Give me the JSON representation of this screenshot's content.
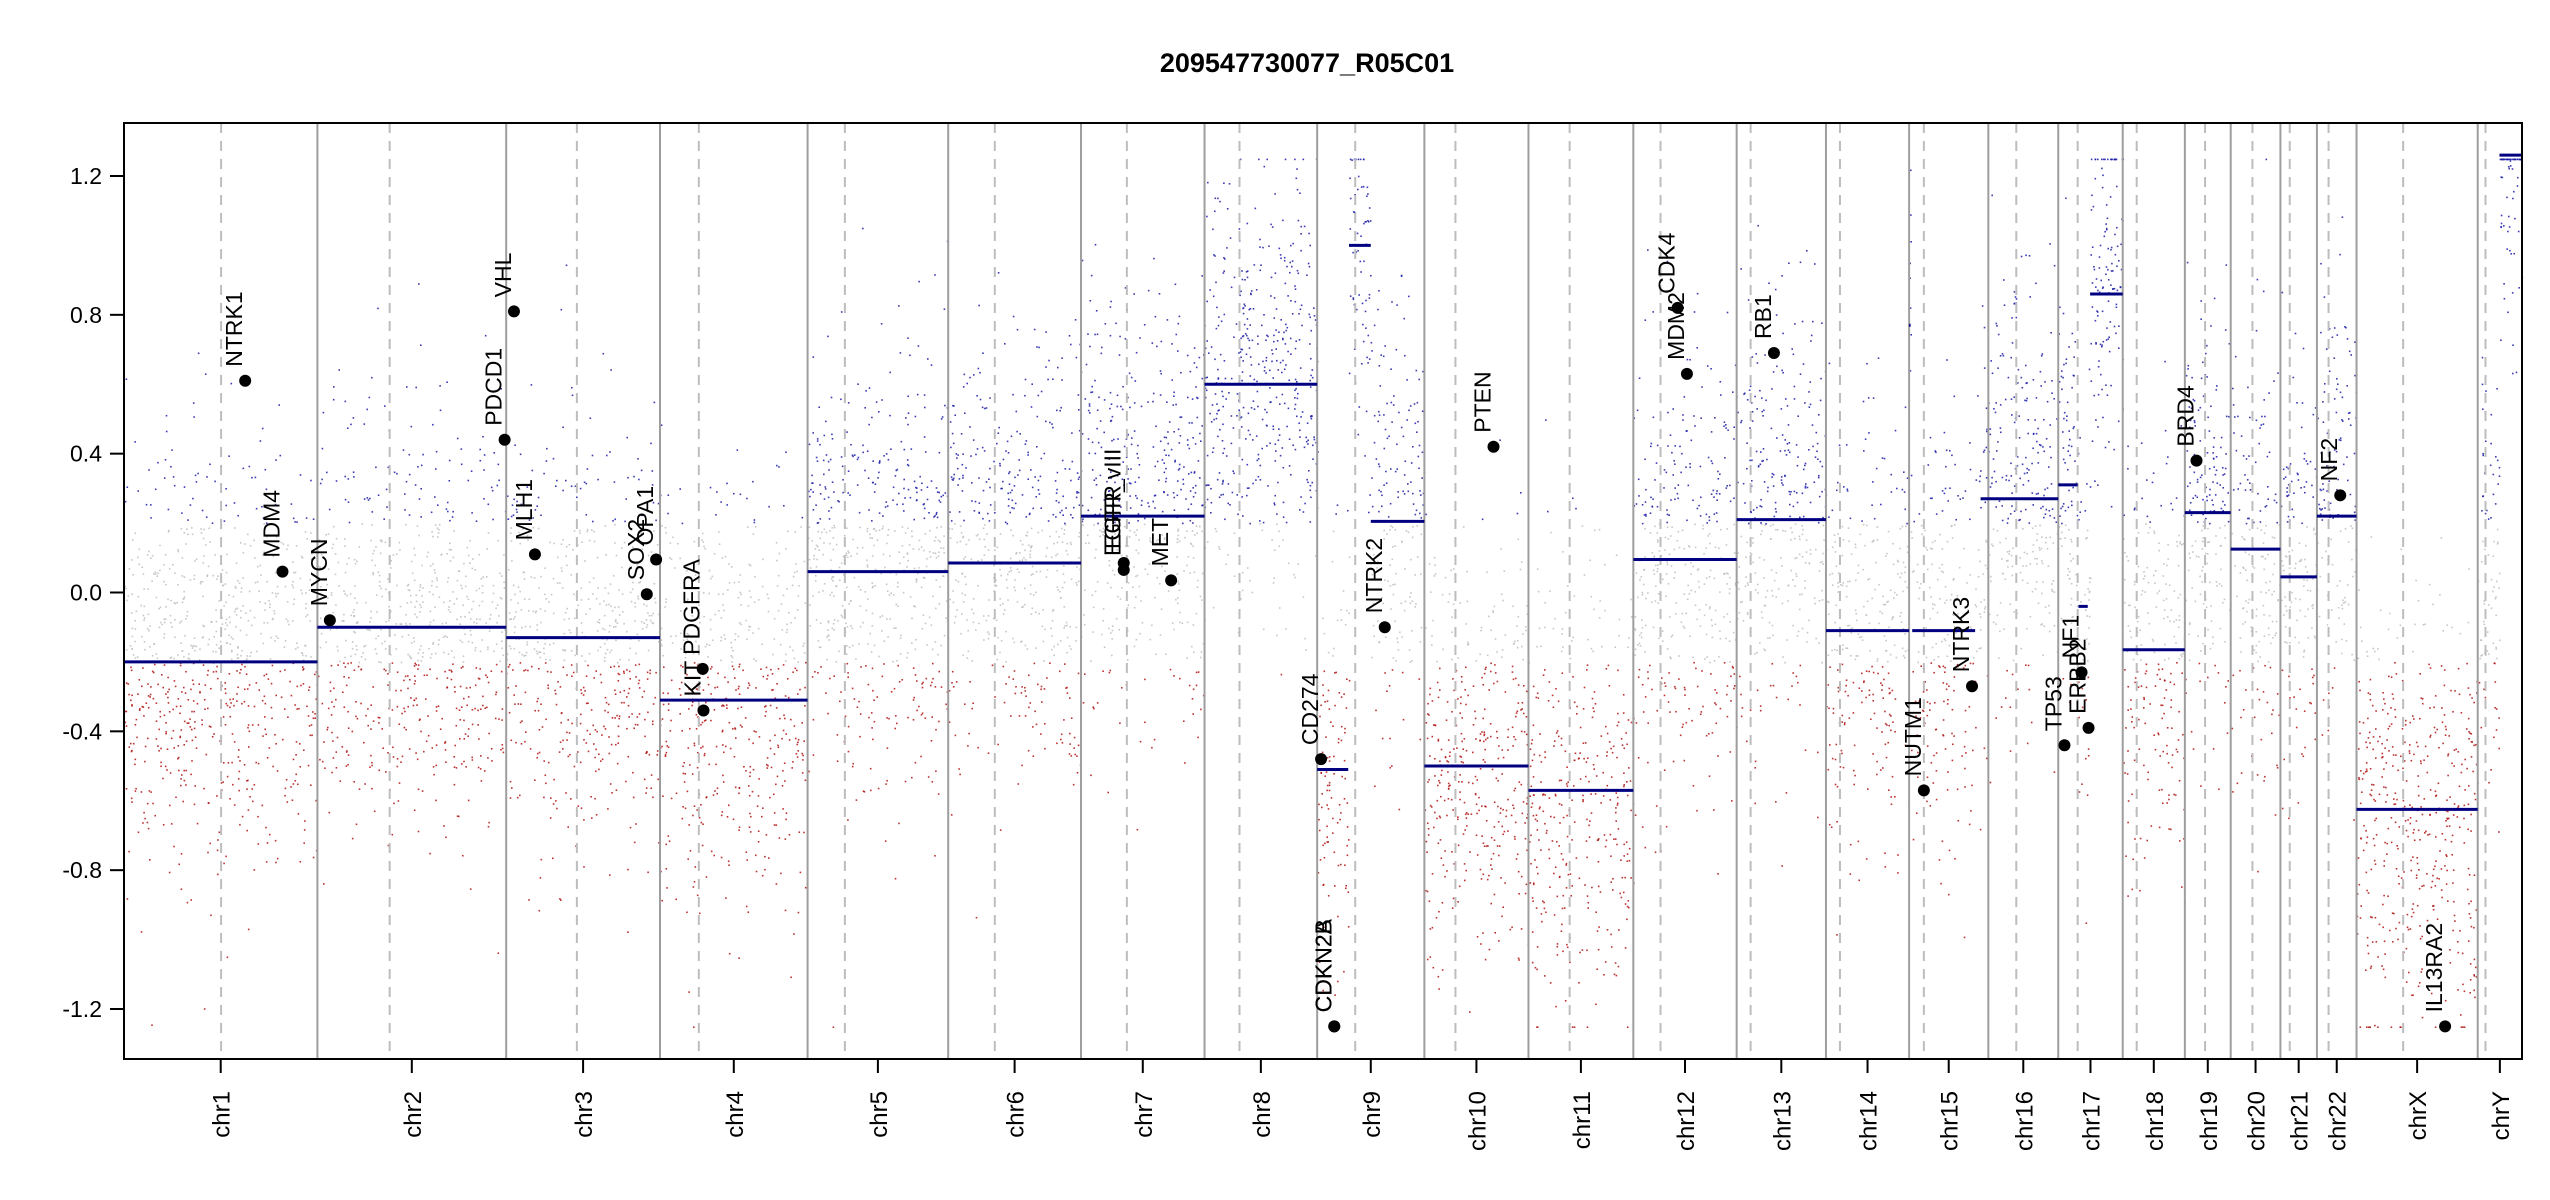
{
  "chart_data": {
    "type": "scatter",
    "title": "209547730077_R05C01",
    "xlabel": "",
    "ylabel": "",
    "ylim": [
      -1.35,
      1.35
    ],
    "yticks": [
      -1.2,
      -0.8,
      -0.4,
      0.0,
      0.4,
      0.8,
      1.2
    ],
    "ytick_labels": [
      "-1.2",
      "-0.8",
      "-0.4",
      "0.0",
      "0.4",
      "0.8",
      "1.2"
    ],
    "grid": false,
    "colors": {
      "gain": "#1a1aa6",
      "neutral": "#bdbdbd",
      "loss": "#b01010",
      "segment": "#000080",
      "gene_point": "#000000",
      "chr_boundary": "#9e9e9e",
      "centromere": "#bdbdbd"
    },
    "chromosomes": [
      {
        "name": "chr1",
        "start": 0,
        "end": 249,
        "cen": 125
      },
      {
        "name": "chr2",
        "start": 249,
        "end": 492,
        "cen": 93
      },
      {
        "name": "chr3",
        "start": 492,
        "end": 690,
        "cen": 91
      },
      {
        "name": "chr4",
        "start": 690,
        "end": 880,
        "cen": 50
      },
      {
        "name": "chr5",
        "start": 880,
        "end": 1061,
        "cen": 48
      },
      {
        "name": "chr6",
        "start": 1061,
        "end": 1232,
        "cen": 60
      },
      {
        "name": "chr7",
        "start": 1232,
        "end": 1391,
        "cen": 59
      },
      {
        "name": "chr8",
        "start": 1391,
        "end": 1536,
        "cen": 45
      },
      {
        "name": "chr9",
        "start": 1536,
        "end": 1674,
        "cen": 49
      },
      {
        "name": "chr10",
        "start": 1674,
        "end": 1808,
        "cen": 40
      },
      {
        "name": "chr11",
        "start": 1808,
        "end": 1943,
        "cen": 53
      },
      {
        "name": "chr12",
        "start": 1943,
        "end": 2076,
        "cen": 35
      },
      {
        "name": "chr13",
        "start": 2076,
        "end": 2191,
        "cen": 18
      },
      {
        "name": "chr14",
        "start": 2191,
        "end": 2298,
        "cen": 18
      },
      {
        "name": "chr15",
        "start": 2298,
        "end": 2400,
        "cen": 19
      },
      {
        "name": "chr16",
        "start": 2400,
        "end": 2490,
        "cen": 36
      },
      {
        "name": "chr17",
        "start": 2490,
        "end": 2573,
        "cen": 25
      },
      {
        "name": "chr18",
        "start": 2573,
        "end": 2653,
        "cen": 18
      },
      {
        "name": "chr19",
        "start": 2653,
        "end": 2712,
        "cen": 26
      },
      {
        "name": "chr20",
        "start": 2712,
        "end": 2776,
        "cen": 28
      },
      {
        "name": "chr21",
        "start": 2776,
        "end": 2823,
        "cen": 12
      },
      {
        "name": "chr22",
        "start": 2823,
        "end": 2874,
        "cen": 15
      },
      {
        "name": "chrX",
        "start": 2874,
        "end": 3030,
        "cen": 60
      },
      {
        "name": "chrY",
        "start": 3030,
        "end": 3087,
        "cen": 10
      }
    ],
    "segments": [
      {
        "x": [
          0,
          249
        ],
        "y": -0.2
      },
      {
        "x": [
          249,
          492
        ],
        "y": -0.1
      },
      {
        "x": [
          492,
          690
        ],
        "y": -0.13
      },
      {
        "x": [
          690,
          880
        ],
        "y": -0.31
      },
      {
        "x": [
          880,
          1061
        ],
        "y": 0.06
      },
      {
        "x": [
          1061,
          1232
        ],
        "y": 0.085
      },
      {
        "x": [
          1232,
          1391
        ],
        "y": 0.22
      },
      {
        "x": [
          1391,
          1536
        ],
        "y": 0.6
      },
      {
        "x": [
          1536,
          1576
        ],
        "y": -0.51
      },
      {
        "x": [
          1577,
          1605
        ],
        "y": 1.0
      },
      {
        "x": [
          1605,
          1674
        ],
        "y": 0.205
      },
      {
        "x": [
          1674,
          1808
        ],
        "y": -0.5
      },
      {
        "x": [
          1808,
          1943
        ],
        "y": -0.57
      },
      {
        "x": [
          1943,
          2076
        ],
        "y": 0.095
      },
      {
        "x": [
          2076,
          2191
        ],
        "y": 0.21
      },
      {
        "x": [
          2191,
          2298
        ],
        "y": -0.11
      },
      {
        "x": [
          2298,
          2300
        ],
        "y": 0.77
      },
      {
        "x": [
          2302,
          2383
        ],
        "y": -0.11
      },
      {
        "x": [
          2390,
          2490
        ],
        "y": 0.27
      },
      {
        "x": [
          2490,
          2515
        ],
        "y": 0.31
      },
      {
        "x": [
          2516,
          2528
        ],
        "y": -0.04
      },
      {
        "x": [
          2531,
          2573
        ],
        "y": 0.86
      },
      {
        "x": [
          2573,
          2653
        ],
        "y": -0.165
      },
      {
        "x": [
          2653,
          2712
        ],
        "y": 0.23
      },
      {
        "x": [
          2712,
          2776
        ],
        "y": 0.125
      },
      {
        "x": [
          2776,
          2823
        ],
        "y": 0.045
      },
      {
        "x": [
          2823,
          2874
        ],
        "y": 0.22
      },
      {
        "x": [
          2874,
          3030
        ],
        "y": -0.625
      },
      {
        "x": [
          3058,
          3087
        ],
        "y": 1.26
      }
    ],
    "points": [
      {
        "gene": "NTRK1",
        "x": 156,
        "y": 0.61
      },
      {
        "gene": "MDM4",
        "x": 204,
        "y": 0.06
      },
      {
        "gene": "MYCN",
        "x": 265,
        "y": -0.08
      },
      {
        "gene": "PDCD1",
        "x": 490,
        "y": 0.44
      },
      {
        "gene": "VHL",
        "x": 502,
        "y": 0.81
      },
      {
        "gene": "MLH1",
        "x": 529,
        "y": 0.11
      },
      {
        "gene": "SOX2",
        "x": 673,
        "y": -0.005
      },
      {
        "gene": "OPA1",
        "x": 685,
        "y": 0.095
      },
      {
        "gene": "PDGFRA",
        "x": 745,
        "y": -0.22
      },
      {
        "gene": "KIT",
        "x": 746,
        "y": -0.34
      },
      {
        "gene": "EGFR",
        "x": 1287,
        "y": 0.085
      },
      {
        "gene": "EGFR_vIII",
        "x": 1287,
        "y": 0.065
      },
      {
        "gene": "MET",
        "x": 1348,
        "y": 0.035
      },
      {
        "gene": "CD274",
        "x": 1541,
        "y": -0.48
      },
      {
        "gene": "CDKN2A",
        "x": 1558,
        "y": -1.25
      },
      {
        "gene": "CDKN2B",
        "x": 1558,
        "y": -1.25
      },
      {
        "gene": "NTRK2",
        "x": 1623,
        "y": -0.1
      },
      {
        "gene": "PTEN",
        "x": 1763,
        "y": 0.42
      },
      {
        "gene": "MDM2",
        "x": 2012,
        "y": 0.63
      },
      {
        "gene": "CDK4",
        "x": 2000,
        "y": 0.82
      },
      {
        "gene": "RB1",
        "x": 2124,
        "y": 0.69
      },
      {
        "gene": "NUTM1",
        "x": 2317,
        "y": -0.57
      },
      {
        "gene": "NTRK3",
        "x": 2379,
        "y": -0.27
      },
      {
        "gene": "TP53",
        "x": 2498,
        "y": -0.44
      },
      {
        "gene": "ERBB2",
        "x": 2529,
        "y": -0.39
      },
      {
        "gene": "NF1",
        "x": 2520,
        "y": -0.23
      },
      {
        "gene": "BRD4",
        "x": 2668,
        "y": 0.38
      },
      {
        "gene": "NF2",
        "x": 2853,
        "y": 0.28
      },
      {
        "gene": "IL13RA2",
        "x": 2988,
        "y": -1.25
      }
    ]
  }
}
